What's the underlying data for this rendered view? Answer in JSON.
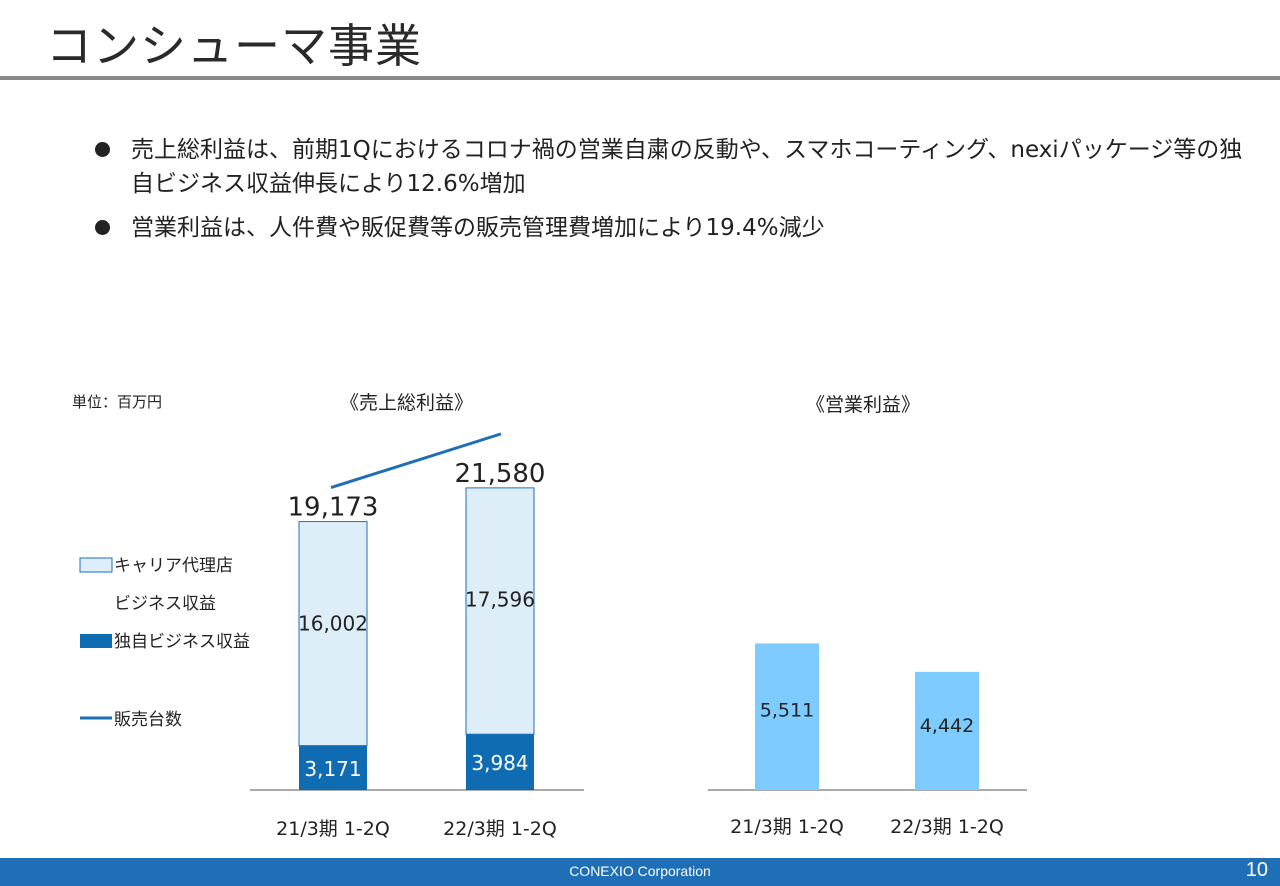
{
  "title": "コンシューマ事業",
  "bullets": [
    "売上総利益は、前期1Qにおけるコロナ禍の営業自粛の反動や、スマホコーティング、nexiパッケージ等の独自ビジネス収益伸長により12.6%増加",
    "営業利益は、人件費や販促費等の販売管理費増加により19.4%減少"
  ],
  "unit_label": "単位：百万円",
  "legend": {
    "carrier_line1": "キャリア代理店",
    "carrier_line2": "ビジネス収益",
    "own": "独自ビジネス収益",
    "units": "販売台数"
  },
  "chart_data": [
    {
      "type": "bar",
      "title": "《売上総利益》",
      "categories": [
        "21/3期 1-2Q",
        "22/3期 1-2Q"
      ],
      "series": [
        {
          "name": "独自ビジネス収益",
          "values": [
            3171,
            3984
          ],
          "color": "#0f6cb3"
        },
        {
          "name": "キャリア代理店ビジネス収益",
          "values": [
            16002,
            17596
          ],
          "color": "#deeef9"
        }
      ],
      "totals": [
        19173,
        21580
      ],
      "total_labels": [
        "19,173",
        "21,580"
      ],
      "value_labels": {
        "own": [
          "3,171",
          "3,984"
        ],
        "carrier": [
          "16,002",
          "17,596"
        ]
      },
      "line_series": {
        "name": "販売台数",
        "trend": "increase",
        "color": "#1f6fb6"
      }
    },
    {
      "type": "bar",
      "title": "《営業利益》",
      "categories": [
        "21/3期 1-2Q",
        "22/3期 1-2Q"
      ],
      "values": [
        5511,
        4442
      ],
      "value_labels": [
        "5,511",
        "4,442"
      ],
      "color": "#7ecbff"
    }
  ],
  "footer": {
    "company": "CONEXIO Corporation",
    "page": "10"
  }
}
